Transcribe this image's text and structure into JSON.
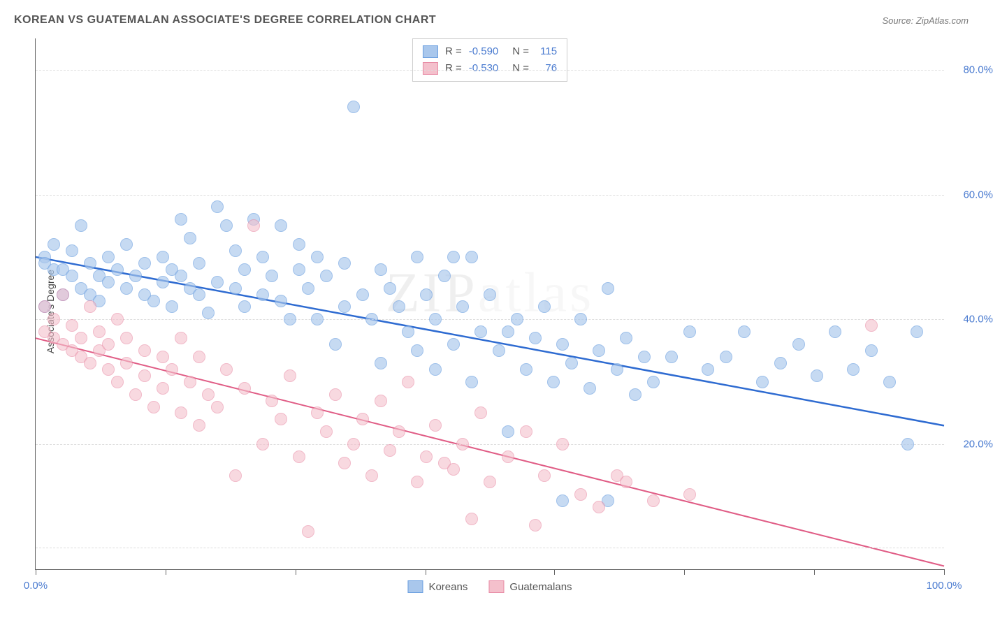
{
  "header": {
    "title": "KOREAN VS GUATEMALAN ASSOCIATE'S DEGREE CORRELATION CHART",
    "source": "Source: ZipAtlas.com"
  },
  "chart": {
    "type": "scatter",
    "ylabel": "Associate's Degree",
    "watermark": "ZIPatlas",
    "background_color": "#ffffff",
    "grid_color": "#dddddd",
    "axis_color": "#666666",
    "label_fontsize": 14,
    "tick_fontsize": 15,
    "tick_color": "#4a7bd0",
    "xlim": [
      0,
      100
    ],
    "ylim": [
      0,
      85
    ],
    "xticks": [
      0,
      14.3,
      28.6,
      42.9,
      57.1,
      71.4,
      85.7,
      100
    ],
    "xlabels_shown": {
      "0": "0.0%",
      "100": "100.0%"
    },
    "yticks": [
      20,
      40,
      60,
      80
    ],
    "ytick_labels": [
      "20.0%",
      "40.0%",
      "60.0%",
      "80.0%"
    ],
    "grid_y": [
      3.5,
      20,
      40,
      60,
      80
    ],
    "series": [
      {
        "name": "Koreans",
        "color_fill": "#a9c7ec",
        "color_stroke": "#6b9fe0",
        "fill_opacity": 0.65,
        "marker_radius": 9,
        "stroke_width": 1.2,
        "trend": {
          "x1": 0,
          "y1": 50,
          "x2": 100,
          "y2": 23,
          "color": "#2e6bd1",
          "width": 2.5
        },
        "stats": {
          "R": "-0.590",
          "N": "115"
        },
        "points": [
          [
            1,
            50
          ],
          [
            1,
            49
          ],
          [
            1,
            42
          ],
          [
            2,
            48
          ],
          [
            2,
            52
          ],
          [
            3,
            48
          ],
          [
            3,
            44
          ],
          [
            4,
            47
          ],
          [
            4,
            51
          ],
          [
            5,
            45
          ],
          [
            5,
            55
          ],
          [
            6,
            44
          ],
          [
            6,
            49
          ],
          [
            7,
            43
          ],
          [
            7,
            47
          ],
          [
            8,
            46
          ],
          [
            8,
            50
          ],
          [
            9,
            48
          ],
          [
            10,
            45
          ],
          [
            10,
            52
          ],
          [
            11,
            47
          ],
          [
            12,
            44
          ],
          [
            12,
            49
          ],
          [
            13,
            43
          ],
          [
            14,
            46
          ],
          [
            14,
            50
          ],
          [
            15,
            42
          ],
          [
            15,
            48
          ],
          [
            16,
            56
          ],
          [
            16,
            47
          ],
          [
            17,
            45
          ],
          [
            17,
            53
          ],
          [
            18,
            44
          ],
          [
            18,
            49
          ],
          [
            19,
            41
          ],
          [
            20,
            58
          ],
          [
            20,
            46
          ],
          [
            21,
            55
          ],
          [
            22,
            51
          ],
          [
            22,
            45
          ],
          [
            23,
            42
          ],
          [
            23,
            48
          ],
          [
            24,
            56
          ],
          [
            25,
            44
          ],
          [
            25,
            50
          ],
          [
            26,
            47
          ],
          [
            27,
            43
          ],
          [
            27,
            55
          ],
          [
            28,
            40
          ],
          [
            29,
            48
          ],
          [
            29,
            52
          ],
          [
            30,
            45
          ],
          [
            31,
            50
          ],
          [
            31,
            40
          ],
          [
            32,
            47
          ],
          [
            33,
            36
          ],
          [
            34,
            42
          ],
          [
            34,
            49
          ],
          [
            35,
            74
          ],
          [
            36,
            44
          ],
          [
            37,
            40
          ],
          [
            38,
            33
          ],
          [
            38,
            48
          ],
          [
            39,
            45
          ],
          [
            40,
            42
          ],
          [
            41,
            38
          ],
          [
            42,
            50
          ],
          [
            42,
            35
          ],
          [
            43,
            44
          ],
          [
            44,
            40
          ],
          [
            45,
            47
          ],
          [
            46,
            36
          ],
          [
            47,
            42
          ],
          [
            48,
            30
          ],
          [
            49,
            38
          ],
          [
            50,
            44
          ],
          [
            51,
            35
          ],
          [
            52,
            22
          ],
          [
            53,
            40
          ],
          [
            54,
            32
          ],
          [
            55,
            37
          ],
          [
            56,
            42
          ],
          [
            57,
            30
          ],
          [
            58,
            36
          ],
          [
            59,
            33
          ],
          [
            60,
            40
          ],
          [
            61,
            29
          ],
          [
            62,
            35
          ],
          [
            63,
            11
          ],
          [
            64,
            32
          ],
          [
            65,
            37
          ],
          [
            66,
            28
          ],
          [
            67,
            34
          ],
          [
            68,
            30
          ],
          [
            70,
            34
          ],
          [
            72,
            38
          ],
          [
            74,
            32
          ],
          [
            76,
            34
          ],
          [
            78,
            38
          ],
          [
            80,
            30
          ],
          [
            82,
            33
          ],
          [
            84,
            36
          ],
          [
            86,
            31
          ],
          [
            88,
            38
          ],
          [
            90,
            32
          ],
          [
            92,
            35
          ],
          [
            94,
            30
          ],
          [
            96,
            20
          ],
          [
            97,
            38
          ],
          [
            63,
            45
          ],
          [
            58,
            11
          ],
          [
            48,
            50
          ],
          [
            52,
            38
          ],
          [
            44,
            32
          ],
          [
            46,
            50
          ]
        ]
      },
      {
        "name": "Guatemalans",
        "color_fill": "#f4c0cc",
        "color_stroke": "#e88ba5",
        "fill_opacity": 0.6,
        "marker_radius": 9,
        "stroke_width": 1.2,
        "trend": {
          "x1": 0,
          "y1": 37,
          "x2": 100,
          "y2": 0.5,
          "color": "#e05c85",
          "width": 2.0
        },
        "stats": {
          "R": "-0.530",
          "N": "76"
        },
        "points": [
          [
            1,
            42
          ],
          [
            1,
            38
          ],
          [
            2,
            37
          ],
          [
            2,
            40
          ],
          [
            3,
            36
          ],
          [
            3,
            44
          ],
          [
            4,
            35
          ],
          [
            4,
            39
          ],
          [
            5,
            34
          ],
          [
            5,
            37
          ],
          [
            6,
            33
          ],
          [
            6,
            42
          ],
          [
            7,
            35
          ],
          [
            7,
            38
          ],
          [
            8,
            32
          ],
          [
            8,
            36
          ],
          [
            9,
            30
          ],
          [
            9,
            40
          ],
          [
            10,
            33
          ],
          [
            10,
            37
          ],
          [
            11,
            28
          ],
          [
            12,
            35
          ],
          [
            12,
            31
          ],
          [
            13,
            26
          ],
          [
            14,
            34
          ],
          [
            14,
            29
          ],
          [
            15,
            32
          ],
          [
            16,
            25
          ],
          [
            16,
            37
          ],
          [
            17,
            30
          ],
          [
            18,
            23
          ],
          [
            18,
            34
          ],
          [
            19,
            28
          ],
          [
            20,
            26
          ],
          [
            21,
            32
          ],
          [
            22,
            15
          ],
          [
            23,
            29
          ],
          [
            24,
            55
          ],
          [
            25,
            20
          ],
          [
            26,
            27
          ],
          [
            27,
            24
          ],
          [
            28,
            31
          ],
          [
            29,
            18
          ],
          [
            30,
            6
          ],
          [
            31,
            25
          ],
          [
            32,
            22
          ],
          [
            33,
            28
          ],
          [
            34,
            17
          ],
          [
            35,
            20
          ],
          [
            36,
            24
          ],
          [
            37,
            15
          ],
          [
            38,
            27
          ],
          [
            39,
            19
          ],
          [
            40,
            22
          ],
          [
            41,
            30
          ],
          [
            42,
            14
          ],
          [
            43,
            18
          ],
          [
            44,
            23
          ],
          [
            45,
            17
          ],
          [
            46,
            16
          ],
          [
            47,
            20
          ],
          [
            48,
            8
          ],
          [
            49,
            25
          ],
          [
            50,
            14
          ],
          [
            52,
            18
          ],
          [
            54,
            22
          ],
          [
            55,
            7
          ],
          [
            56,
            15
          ],
          [
            58,
            20
          ],
          [
            60,
            12
          ],
          [
            62,
            10
          ],
          [
            64,
            15
          ],
          [
            65,
            14
          ],
          [
            68,
            11
          ],
          [
            72,
            12
          ],
          [
            92,
            39
          ]
        ]
      }
    ],
    "legend_bottom": [
      {
        "label": "Koreans",
        "fill": "#a9c7ec",
        "stroke": "#6b9fe0"
      },
      {
        "label": "Guatemalans",
        "fill": "#f4c0cc",
        "stroke": "#e88ba5"
      }
    ],
    "stat_legend": [
      {
        "fill": "#a9c7ec",
        "stroke": "#6b9fe0",
        "R_label": "R =",
        "R": "-0.590",
        "N_label": "N =",
        "N": "115"
      },
      {
        "fill": "#f4c0cc",
        "stroke": "#e88ba5",
        "R_label": "R =",
        "R": "-0.530",
        "N_label": "N =",
        "N": "76"
      }
    ]
  }
}
